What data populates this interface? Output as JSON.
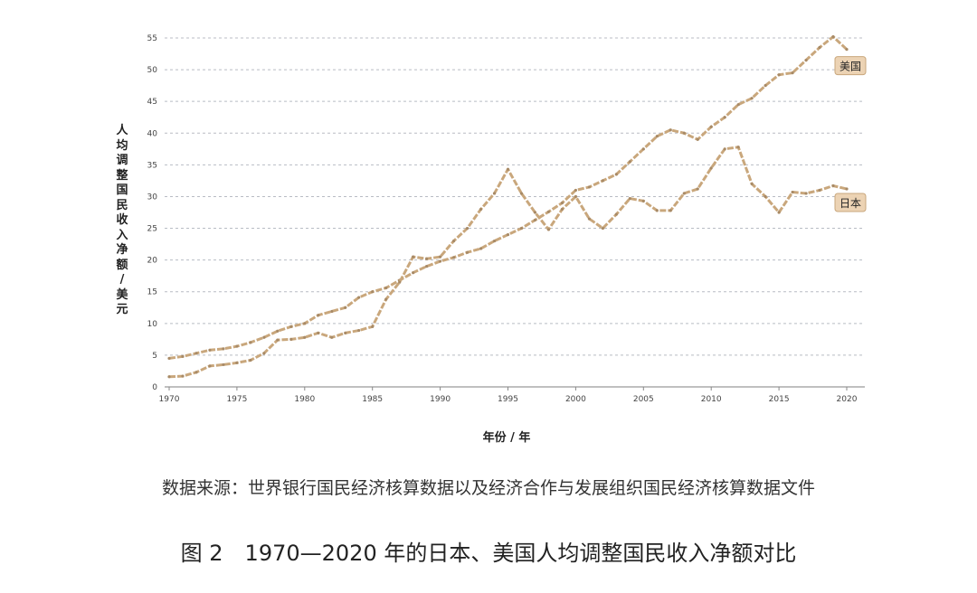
{
  "chart_data": {
    "type": "line",
    "title": "图 2　1970—2020 年的日本、美国人均调整国民收入净额对比",
    "xlabel": "年份 / 年",
    "ylabel": "人均调整国民收入净额 / 美元",
    "xlim": [
      1970,
      2020
    ],
    "ylim": [
      0,
      55
    ],
    "xticks": [
      1970,
      1975,
      1980,
      1985,
      1990,
      1995,
      2000,
      2005,
      2010,
      2015,
      2020
    ],
    "yticks": [
      0,
      5,
      10,
      15,
      20,
      25,
      30,
      35,
      40,
      45,
      50,
      55
    ],
    "grid": "horizontal dashed",
    "color": "#c9a77c",
    "x": [
      1970,
      1971,
      1972,
      1973,
      1974,
      1975,
      1976,
      1977,
      1978,
      1979,
      1980,
      1981,
      1982,
      1983,
      1984,
      1985,
      1986,
      1987,
      1988,
      1989,
      1990,
      1991,
      1992,
      1993,
      1994,
      1995,
      1996,
      1997,
      1998,
      1999,
      2000,
      2001,
      2002,
      2003,
      2004,
      2005,
      2006,
      2007,
      2008,
      2009,
      2010,
      2011,
      2012,
      2013,
      2014,
      2015,
      2016,
      2017,
      2018,
      2019,
      2020
    ],
    "series": [
      {
        "name": "美国",
        "values": [
          4.5,
          4.8,
          5.3,
          5.8,
          6.0,
          6.4,
          7.0,
          7.8,
          8.8,
          9.5,
          10.0,
          11.3,
          11.9,
          12.5,
          14.1,
          15.0,
          15.6,
          16.8,
          18.0,
          19.0,
          19.8,
          20.4,
          21.2,
          21.8,
          23.0,
          24.0,
          25.0,
          26.3,
          27.6,
          29.0,
          31.0,
          31.5,
          32.5,
          33.5,
          35.5,
          37.5,
          39.5,
          40.5,
          40.0,
          39.0,
          41.0,
          42.5,
          44.5,
          45.5,
          47.5,
          49.2,
          49.5,
          51.5,
          53.5,
          55.2,
          53.2
        ]
      },
      {
        "name": "日本",
        "values": [
          1.6,
          1.7,
          2.3,
          3.3,
          3.5,
          3.8,
          4.2,
          5.3,
          7.4,
          7.5,
          7.8,
          8.5,
          7.8,
          8.5,
          8.9,
          9.5,
          13.8,
          16.5,
          20.5,
          20.2,
          20.5,
          23.0,
          25.0,
          28.0,
          30.5,
          34.3,
          30.5,
          27.5,
          24.8,
          28.0,
          30.0,
          26.5,
          25.0,
          27.2,
          29.7,
          29.3,
          27.8,
          27.8,
          30.5,
          31.2,
          34.5,
          37.5,
          37.8,
          32.0,
          30.0,
          27.5,
          30.7,
          30.5,
          31.0,
          31.7,
          31.2
        ]
      }
    ]
  },
  "source": "数据来源：世界银行国民经济核算数据以及经济合作与发展组织国民经济核算数据文件"
}
